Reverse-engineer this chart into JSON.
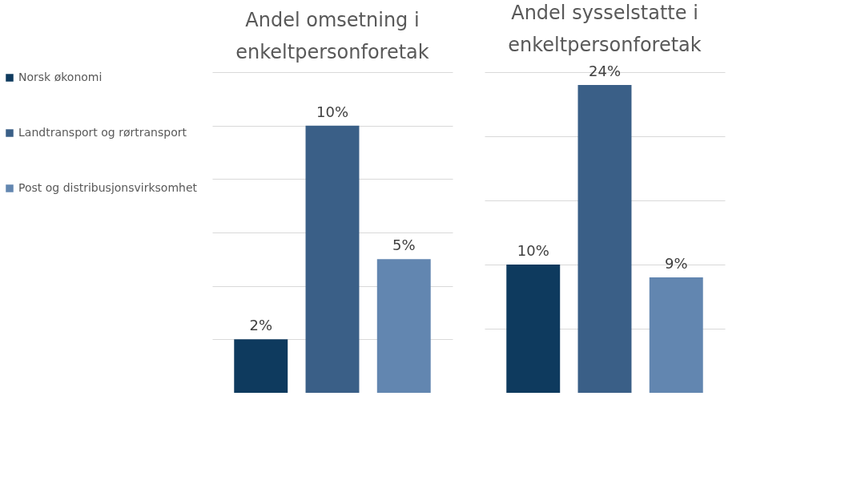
{
  "chart_data": [
    {
      "type": "bar",
      "title": "Andel omsetning i enkeltpersonforetak",
      "categories": [
        null
      ],
      "ylim": [
        0,
        12
      ],
      "yticks": [
        {
          "value": 0,
          "label": null
        },
        {
          "value": 2,
          "label": null
        },
        {
          "value": 4,
          "label": null
        },
        {
          "value": 6,
          "label": null
        },
        {
          "value": 8,
          "label": null
        },
        {
          "value": 10,
          "label": null
        },
        {
          "value": 12,
          "label": null
        }
      ],
      "grid": "y",
      "tick_labels": false,
      "legend": "left",
      "series": [
        {
          "name": "Norsk økonomi",
          "color": "#0e3a5e",
          "values": [
            2
          ],
          "value_labels": [
            "2%"
          ]
        },
        {
          "name": "Landtransport og rørtransport",
          "color": "#3a5f87",
          "values": [
            10
          ],
          "value_labels": [
            "10%"
          ]
        },
        {
          "name": "Post og distribusjonsvirksomhet",
          "color": "#6286b0",
          "values": [
            5
          ],
          "value_labels": [
            "5%"
          ]
        }
      ]
    },
    {
      "type": "bar",
      "title": "Andel sysselstatte i enkeltpersonforetak",
      "categories": [
        null
      ],
      "ylim": [
        0,
        25
      ],
      "yticks": [
        {
          "value": 0,
          "label": null
        },
        {
          "value": 5,
          "label": null
        },
        {
          "value": 10,
          "label": null
        },
        {
          "value": 15,
          "label": null
        },
        {
          "value": 20,
          "label": null
        },
        {
          "value": 25,
          "label": null
        }
      ],
      "grid": "y",
      "tick_labels": false,
      "series": [
        {
          "color": "#0e3a5e",
          "values": [
            10
          ],
          "value_labels": [
            "10%"
          ]
        },
        {
          "color": "#3a5f87",
          "values": [
            24
          ],
          "value_labels": [
            "24%"
          ]
        },
        {
          "color": "#6286b0",
          "values": [
            9
          ],
          "value_labels": [
            "9%"
          ]
        }
      ]
    }
  ]
}
